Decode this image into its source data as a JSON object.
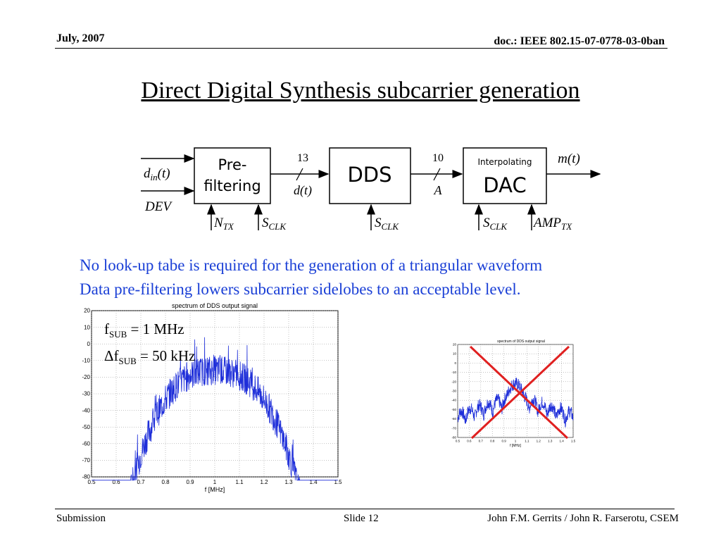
{
  "header": {
    "date": "July, 2007",
    "doc": "doc.: IEEE 802.15-07-0778-03-0ban"
  },
  "title": "Direct Digital Synthesis subcarrier generation",
  "diagram": {
    "blocks": {
      "prefilter_line1": "Pre-",
      "prefilter_line2": "filtering",
      "dds": "DDS",
      "dac_small": "Interpolating",
      "dac": "DAC"
    },
    "bus_widths": {
      "first": "13",
      "second": "10"
    },
    "signals": {
      "din": "d",
      "din_sub": "in",
      "din_rest": "(t)",
      "dev": "DEV",
      "dt": "d(t)",
      "a": "A",
      "mt": "m(t)",
      "ntx": "N",
      "ntx_sub": "TX",
      "sclk": "S",
      "sclk_sub": "CLK",
      "amptx": "AMP",
      "amptx_sub": "TX"
    }
  },
  "notes": [
    "No look-up tabe is required for the generation of a triangular waveform",
    "Data pre-filtering lowers subcarrier sidelobes to an acceptable level."
  ],
  "params": {
    "fsub_prefix": "f",
    "fsub_sub": "SUB",
    "fsub_value": " = 1 MHz",
    "dfsub_prefix": "Δf",
    "dfsub_sub": "SUB",
    "dfsub_value": " = 50 kHz"
  },
  "plot_big": {
    "title": "spectrum of DDS output signal",
    "xlabel": "f [MHz]",
    "xticks": [
      "0.5",
      "0.6",
      "0.7",
      "0.8",
      "0.9",
      "1",
      "1.1",
      "1.2",
      "1.3",
      "1.4",
      "1.5"
    ],
    "yticks": [
      "20",
      "10",
      "0",
      "-10",
      "-20",
      "-30",
      "-40",
      "-50",
      "-60",
      "-70",
      "-80"
    ]
  },
  "plot_small": {
    "title": "spectrum of DDS output signal",
    "xlabel": "f [MHz]",
    "xticks": [
      "0.5",
      "0.6",
      "0.7",
      "0.8",
      "0.9",
      "1",
      "1.1",
      "1.2",
      "1.3",
      "1.4",
      "1.5"
    ],
    "yticks": [
      "20",
      "10",
      "0",
      "-10",
      "-20",
      "-30",
      "-40",
      "-50",
      "-60",
      "-70",
      "-80"
    ]
  },
  "colors": {
    "trace": "#1f2fd9",
    "cross": "#e02020",
    "notes": "#1a3fd6"
  },
  "footer": {
    "left": "Submission",
    "center": "Slide 12",
    "right": "John F.M. Gerrits / John R. Farserotu, CSEM"
  }
}
